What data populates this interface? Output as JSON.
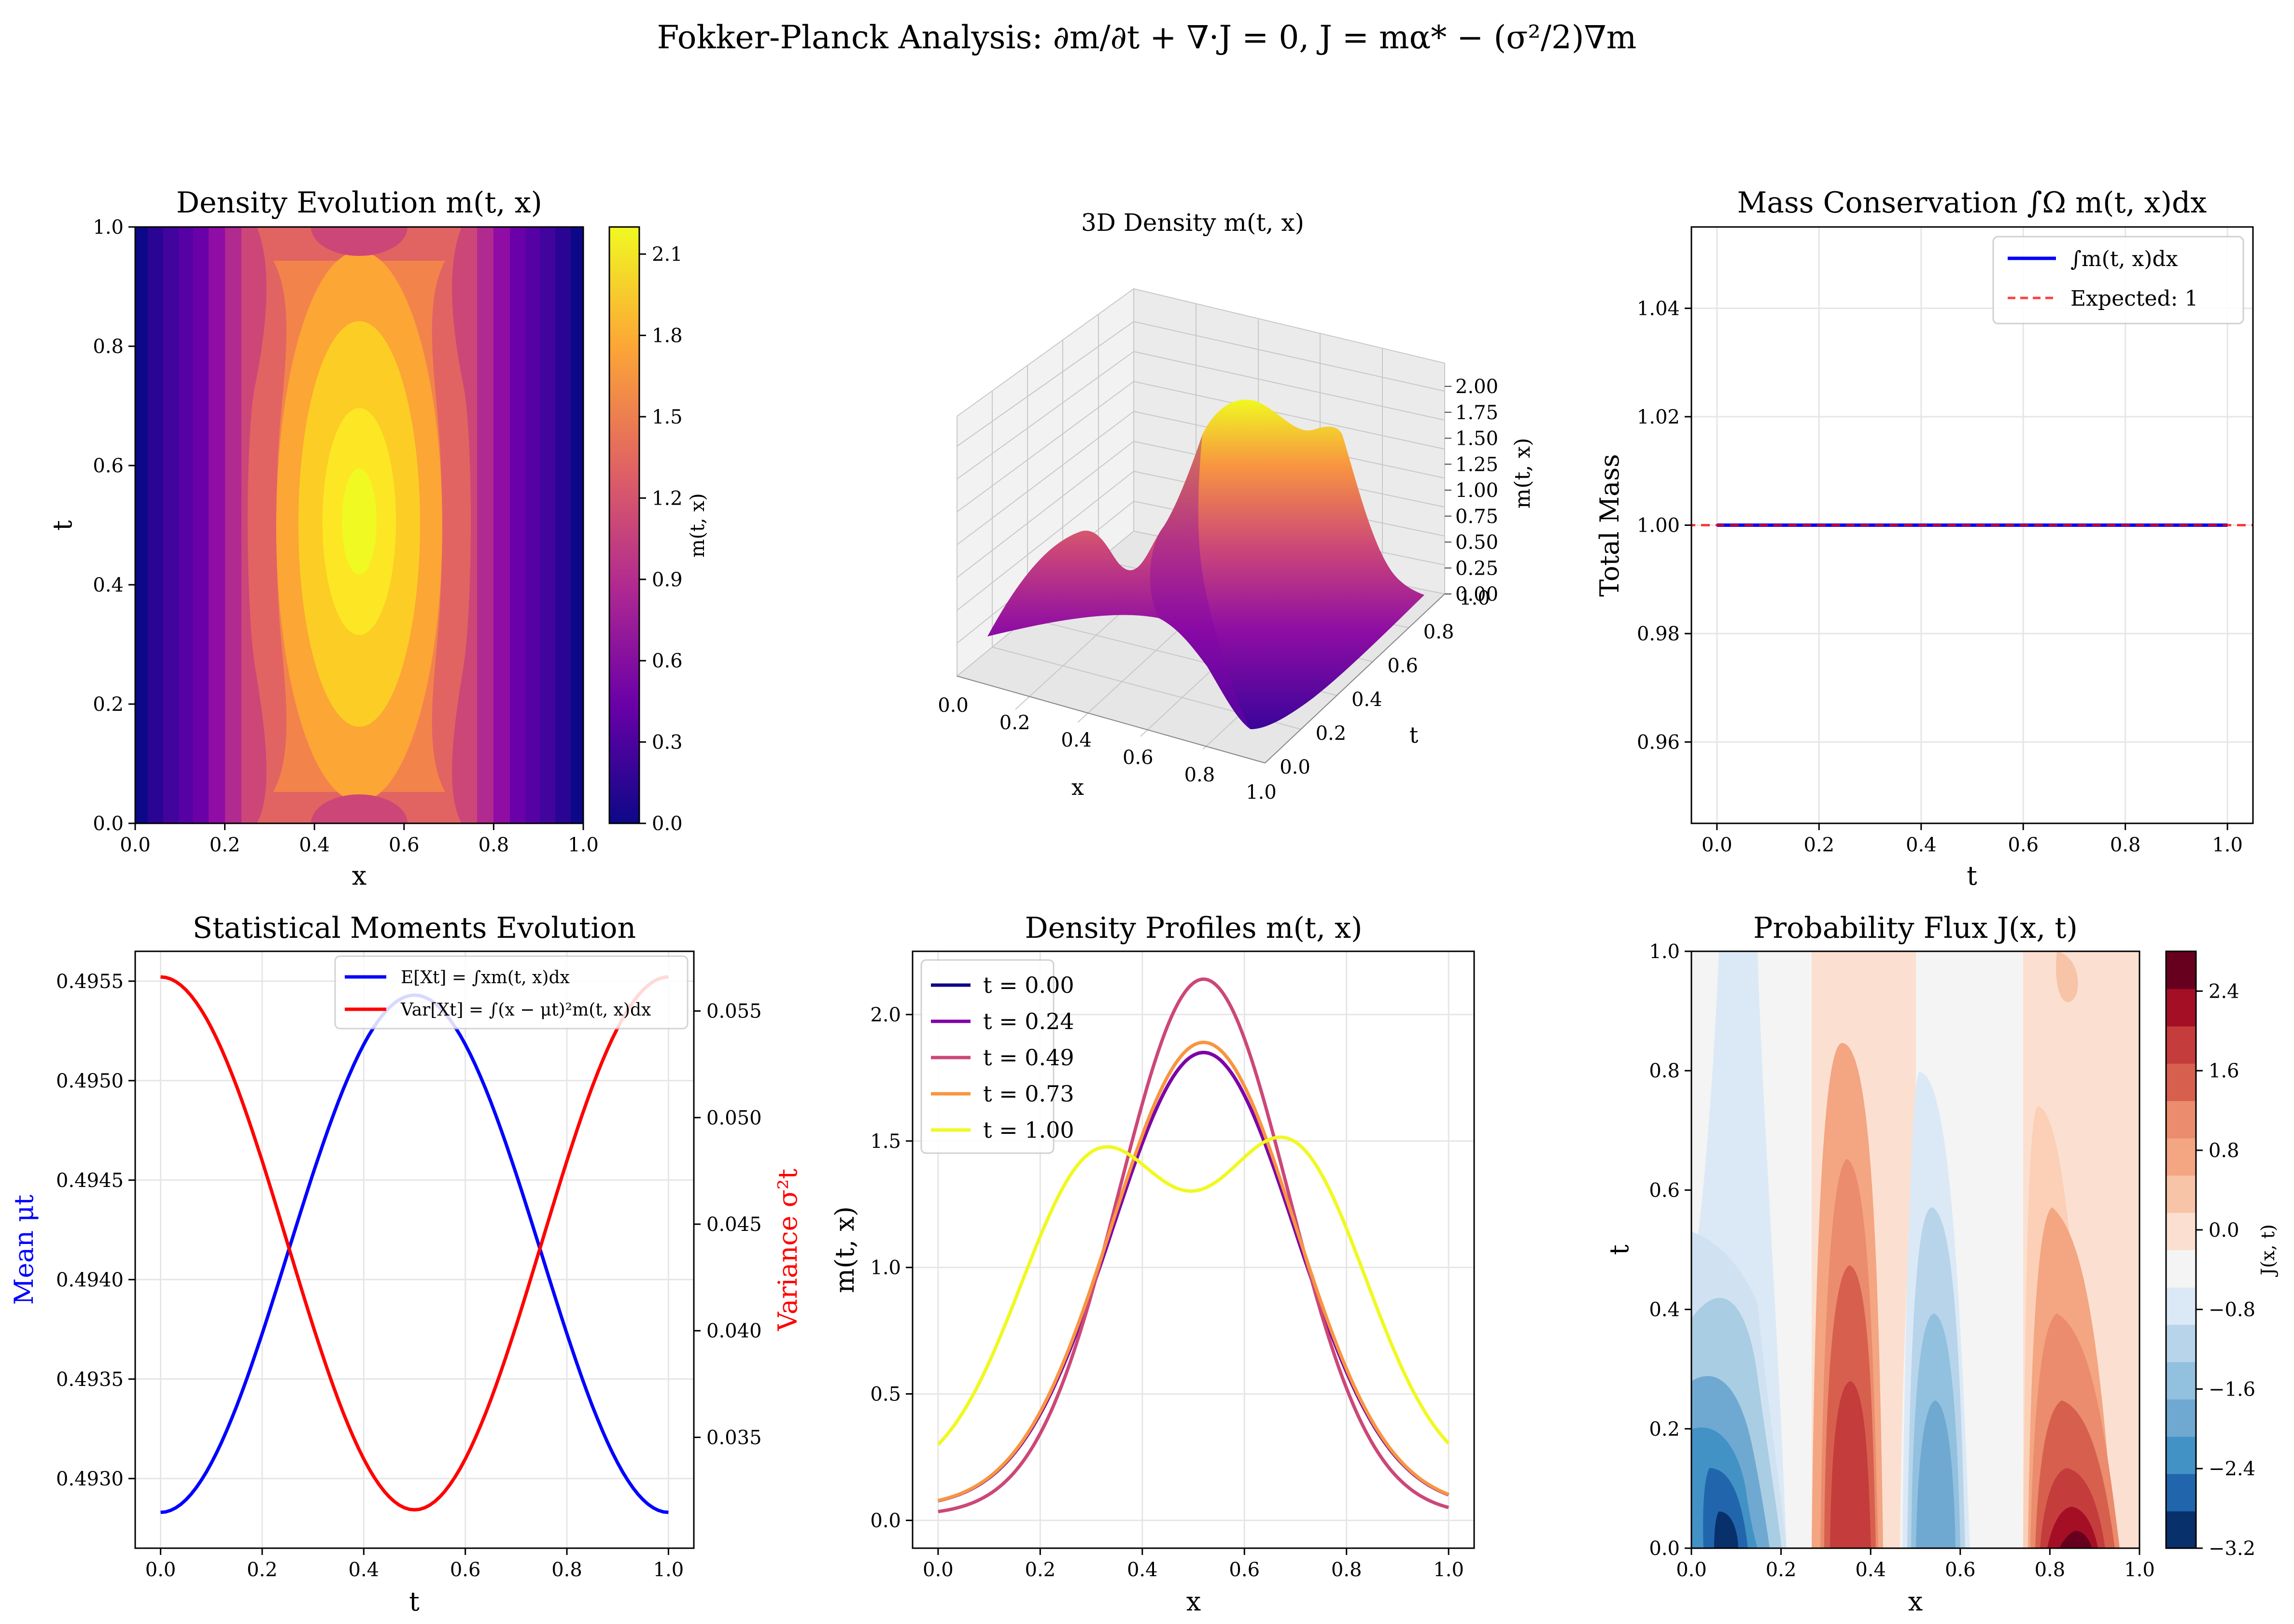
{
  "figure": {
    "suptitle": "Fokker-Planck Analysis: ∂m/∂t + ∇·J = 0, J = mα* − (σ²/2)∇m"
  },
  "panels": {
    "p1": {
      "title": "Density Evolution m(t, x)",
      "xlabel": "x",
      "ylabel": "t",
      "cbar_label": "m(t, x)"
    },
    "p2": {
      "title": "3D Density m(t, x)",
      "xlabel": "x",
      "ylabel": "t",
      "zlabel": "m(t, x)"
    },
    "p3": {
      "title": "Mass Conservation ∫Ω m(t, x)dx",
      "xlabel": "t",
      "ylabel": "Total Mass"
    },
    "p4": {
      "title": "Statistical Moments Evolution",
      "xlabel": "t",
      "ylabel_left": "Mean μt",
      "ylabel_right": "Variance σ²t"
    },
    "p5": {
      "title": "Density Profiles m(t, x)",
      "xlabel": "x",
      "ylabel": "m(t, x)"
    },
    "p6": {
      "title": "Probability Flux J(x, t)",
      "xlabel": "x",
      "ylabel": "t",
      "cbar_label": "J(x, t)"
    }
  },
  "chart_data": [
    {
      "id": "p1",
      "type": "heatmap",
      "title": "Density Evolution m(t, x)",
      "xlabel": "x",
      "ylabel": "t",
      "xlim": [
        0,
        1
      ],
      "ylim": [
        0,
        1
      ],
      "xticks": [
        "0.0",
        "0.2",
        "0.4",
        "0.6",
        "0.8",
        "1.0"
      ],
      "yticks": [
        "0.0",
        "0.2",
        "0.4",
        "0.6",
        "0.8",
        "1.0"
      ],
      "colormap": "plasma",
      "colorbar": {
        "label": "m(t, x)",
        "range": [
          0,
          2.2
        ],
        "ticks": [
          "0.0",
          "0.3",
          "0.6",
          "0.9",
          "1.2",
          "1.5",
          "1.8",
          "2.1"
        ]
      },
      "levels": 15
    },
    {
      "id": "p2",
      "type": "surface",
      "title": "3D Density m(t, x)",
      "xlabel": "x",
      "ylabel": "t",
      "zlabel": "m(t, x)",
      "xticks": [
        "0.0",
        "0.2",
        "0.4",
        "0.6",
        "0.8",
        "1.0"
      ],
      "yticks": [
        "0.0",
        "0.2",
        "0.4",
        "0.6",
        "0.8",
        "1.0"
      ],
      "zticks": [
        "0.00",
        "0.25",
        "0.50",
        "0.75",
        "1.00",
        "1.25",
        "1.50",
        "1.75",
        "2.00"
      ],
      "colormap": "plasma"
    },
    {
      "id": "p3",
      "type": "line",
      "title": "Mass Conservation ∫Ω m(t, x)dx",
      "xlabel": "t",
      "ylabel": "Total Mass",
      "xlim": [
        -0.05,
        1.05
      ],
      "ylim": [
        0.945,
        1.055
      ],
      "xticks": [
        "0.0",
        "0.2",
        "0.4",
        "0.6",
        "0.8",
        "1.0"
      ],
      "yticks": [
        "0.96",
        "0.98",
        "1.00",
        "1.02",
        "1.04"
      ],
      "legend": "top-right",
      "grid": true,
      "series": [
        {
          "name": "∫m(t, x)dx",
          "color": "#0000ff",
          "style": "solid",
          "x": [
            0,
            1
          ],
          "y": [
            1.0,
            1.0
          ]
        },
        {
          "name": "Expected: 1",
          "color": "#ff0000",
          "style": "dashed",
          "y_const": 1.0
        }
      ]
    },
    {
      "id": "p4",
      "type": "line",
      "title": "Statistical Moments Evolution",
      "xlabel": "t",
      "ylabel_left": "Mean μt",
      "ylabel_right": "Variance σ²t",
      "xlim": [
        -0.05,
        1.05
      ],
      "ylim_left": [
        0.49265,
        0.49565
      ],
      "ylim_right": [
        0.0298,
        0.0578
      ],
      "xticks": [
        "0.0",
        "0.2",
        "0.4",
        "0.6",
        "0.8",
        "1.0"
      ],
      "yticks_left": [
        "0.4930",
        "0.4935",
        "0.4940",
        "0.4945",
        "0.4950",
        "0.4955"
      ],
      "yticks_right": [
        "0.035",
        "0.040",
        "0.045",
        "0.050",
        "0.055"
      ],
      "legend": "top-right",
      "grid": true,
      "series": [
        {
          "name": "E[Xt] = ∫xm(t, x)dx",
          "color": "#0000ff",
          "axis": "left",
          "x": [
            0,
            0.1,
            0.2,
            0.3,
            0.4,
            0.5,
            0.6,
            0.7,
            0.8,
            0.9,
            1.0
          ],
          "y": [
            0.49283,
            0.49333,
            0.49408,
            0.49478,
            0.49526,
            0.49543,
            0.49526,
            0.49478,
            0.49408,
            0.49333,
            0.49283
          ]
        },
        {
          "name": "Var[Xt] = ∫(x − μt)²m(t, x)dx",
          "color": "#ff0000",
          "axis": "right",
          "x": [
            0,
            0.1,
            0.2,
            0.3,
            0.4,
            0.5,
            0.6,
            0.7,
            0.8,
            0.9,
            1.0
          ],
          "y": [
            0.0566,
            0.0466,
            0.0396,
            0.0346,
            0.032,
            0.0316,
            0.032,
            0.0346,
            0.0396,
            0.0466,
            0.0566
          ]
        }
      ]
    },
    {
      "id": "p5",
      "type": "line",
      "title": "Density Profiles m(t, x)",
      "xlabel": "x",
      "ylabel": "m(t, x)",
      "xlim": [
        -0.05,
        1.05
      ],
      "ylim": [
        -0.11,
        2.25
      ],
      "xticks": [
        "0.0",
        "0.2",
        "0.4",
        "0.6",
        "0.8",
        "1.0"
      ],
      "yticks": [
        "0.0",
        "0.5",
        "1.0",
        "1.5",
        "2.0"
      ],
      "legend": "top-left",
      "grid": true,
      "series": [
        {
          "name": "t = 0.00",
          "color": "#0d0887",
          "peak": 1.85,
          "base": 0.05
        },
        {
          "name": "t = 0.24",
          "color": "#7e03a8",
          "peak": 1.85,
          "base": 0.05
        },
        {
          "name": "t = 0.49",
          "color": "#cc4778",
          "peak": 2.14,
          "base": 0.02
        },
        {
          "name": "t = 0.73",
          "color": "#f89540",
          "peak": 1.89,
          "base": 0.05
        },
        {
          "name": "t = 1.00",
          "color": "#f0f921",
          "peaks": [
            1.39,
            1.43
          ],
          "valley": 1.11,
          "base": 0.15
        }
      ]
    },
    {
      "id": "p6",
      "type": "heatmap",
      "title": "Probability Flux J(x, t)",
      "xlabel": "x",
      "ylabel": "t",
      "xlim": [
        0,
        1
      ],
      "ylim": [
        0,
        1
      ],
      "xticks": [
        "0.0",
        "0.2",
        "0.4",
        "0.6",
        "0.8",
        "1.0"
      ],
      "yticks": [
        "0.0",
        "0.2",
        "0.4",
        "0.6",
        "0.8",
        "1.0"
      ],
      "colormap": "RdBu_r",
      "colorbar": {
        "label": "J(x, t)",
        "range": [
          -3.2,
          2.8
        ],
        "ticks": [
          "2.4",
          "1.6",
          "0.8",
          "0.0",
          "−0.8",
          "−1.6",
          "−2.4",
          "−3.2"
        ]
      },
      "levels": 15
    }
  ]
}
